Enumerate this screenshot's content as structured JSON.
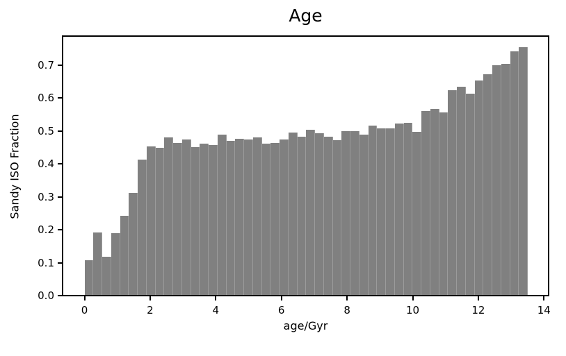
{
  "chart_data": {
    "type": "bar",
    "title": "Age",
    "xlabel": "age/Gyr",
    "ylabel": "Sandy ISO Fraction",
    "bin_start": 0,
    "bin_width": 0.27,
    "bin_end": 13.5,
    "n_bins": 50,
    "values": [
      0.105,
      0.19,
      0.115,
      0.188,
      0.24,
      0.31,
      0.41,
      0.45,
      0.446,
      0.478,
      0.46,
      0.472,
      0.448,
      0.458,
      0.454,
      0.486,
      0.467,
      0.473,
      0.472,
      0.478,
      0.458,
      0.462,
      0.472,
      0.493,
      0.48,
      0.5,
      0.49,
      0.481,
      0.47,
      0.497,
      0.497,
      0.486,
      0.514,
      0.505,
      0.506,
      0.519,
      0.522,
      0.495,
      0.558,
      0.565,
      0.553,
      0.62,
      0.632,
      0.61,
      0.65,
      0.669,
      0.697,
      0.7,
      0.738,
      0.752
    ],
    "x_ticks": [
      0,
      2,
      4,
      6,
      8,
      10,
      12,
      14
    ],
    "x_tick_labels": [
      "0",
      "2",
      "4",
      "6",
      "8",
      "10",
      "12",
      "14"
    ],
    "y_ticks": [
      0.0,
      0.1,
      0.2,
      0.3,
      0.4,
      0.5,
      0.6,
      0.7
    ],
    "y_tick_labels": [
      "0.0",
      "0.1",
      "0.2",
      "0.3",
      "0.4",
      "0.5",
      "0.6",
      "0.7"
    ],
    "xlim": [
      -0.675,
      14.175
    ],
    "ylim": [
      0,
      0.789
    ],
    "grid": false,
    "legend": null,
    "colors": {
      "bar": "#808080",
      "bar_edge": "#9b9b9b",
      "axis": "#000000",
      "text": "#000000",
      "background": "#ffffff"
    }
  }
}
